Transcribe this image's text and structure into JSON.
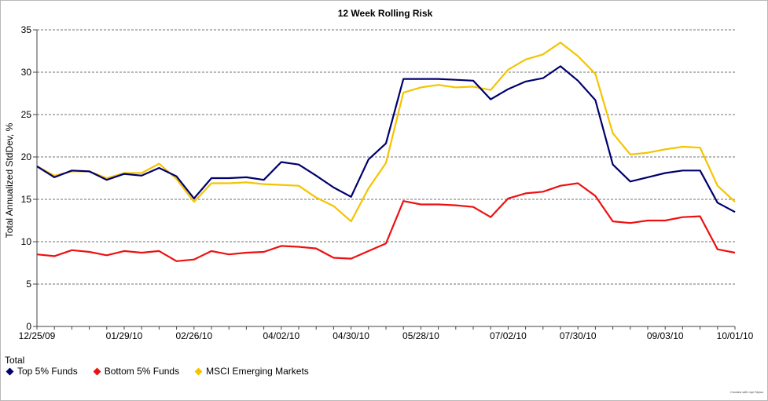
{
  "chart_data": {
    "type": "line",
    "title": "12 Week Rolling Risk",
    "xlabel": "",
    "ylabel": "Total Annualized StdDev, %",
    "ylim": [
      0,
      35
    ],
    "yticks": [
      0,
      5,
      10,
      15,
      20,
      25,
      30,
      35
    ],
    "grid": true,
    "legend_title": "Total",
    "legend_position": "bottom-left",
    "x_ticks": [
      "12/25/09",
      "01/29/10",
      "02/26/10",
      "04/02/10",
      "04/30/10",
      "05/28/10",
      "07/02/10",
      "07/30/10",
      "09/03/10",
      "10/01/10"
    ],
    "x": [
      "12/25/09",
      "01/01/10",
      "01/08/10",
      "01/15/10",
      "01/22/10",
      "01/29/10",
      "02/05/10",
      "02/12/10",
      "02/19/10",
      "02/26/10",
      "03/05/10",
      "03/12/10",
      "03/19/10",
      "03/26/10",
      "04/02/10",
      "04/09/10",
      "04/16/10",
      "04/23/10",
      "04/30/10",
      "05/07/10",
      "05/14/10",
      "05/21/10",
      "05/28/10",
      "06/04/10",
      "06/11/10",
      "06/18/10",
      "06/25/10",
      "07/02/10",
      "07/09/10",
      "07/16/10",
      "07/23/10",
      "07/30/10",
      "08/06/10",
      "08/13/10",
      "08/20/10",
      "08/27/10",
      "09/03/10",
      "09/10/10",
      "09/17/10",
      "09/24/10",
      "10/01/10"
    ],
    "series": [
      {
        "name": "Top 5% Funds",
        "color": "#00006e",
        "values": [
          18.9,
          17.6,
          18.4,
          18.3,
          17.3,
          18.0,
          17.8,
          18.7,
          17.7,
          15.1,
          17.5,
          17.5,
          17.6,
          17.3,
          19.4,
          19.1,
          17.8,
          16.4,
          15.3,
          19.7,
          21.6,
          29.2,
          29.2,
          29.2,
          29.1,
          29.0,
          26.8,
          28.0,
          28.9,
          29.3,
          30.7,
          29.0,
          26.7,
          19.1,
          17.1,
          17.6,
          18.1,
          18.4,
          18.4,
          14.6,
          13.5
        ]
      },
      {
        "name": "Bottom 5% Funds",
        "color": "#ee1010",
        "values": [
          8.5,
          8.3,
          9.0,
          8.8,
          8.4,
          8.9,
          8.7,
          8.9,
          7.7,
          7.9,
          8.9,
          8.5,
          8.7,
          8.8,
          9.5,
          9.4,
          9.2,
          8.1,
          8.0,
          8.9,
          9.8,
          14.8,
          14.4,
          14.4,
          14.3,
          14.1,
          12.9,
          15.1,
          15.7,
          15.9,
          16.6,
          16.9,
          15.4,
          12.4,
          12.2,
          12.5,
          12.5,
          12.9,
          13.0,
          9.1,
          8.7
        ]
      },
      {
        "name": "MSCI Emerging Markets",
        "color": "#f5c400",
        "values": [
          18.9,
          17.8,
          18.3,
          18.3,
          17.5,
          18.1,
          18.1,
          19.2,
          17.4,
          14.7,
          16.9,
          16.9,
          17.0,
          16.8,
          16.7,
          16.6,
          15.2,
          14.2,
          12.4,
          16.3,
          19.3,
          27.6,
          28.2,
          28.5,
          28.2,
          28.3,
          27.9,
          30.3,
          31.5,
          32.1,
          33.5,
          31.9,
          29.8,
          22.8,
          20.3,
          20.5,
          20.9,
          21.2,
          21.1,
          16.6,
          14.7
        ]
      }
    ]
  },
  "credit_text": "Created with mpi Stylus"
}
